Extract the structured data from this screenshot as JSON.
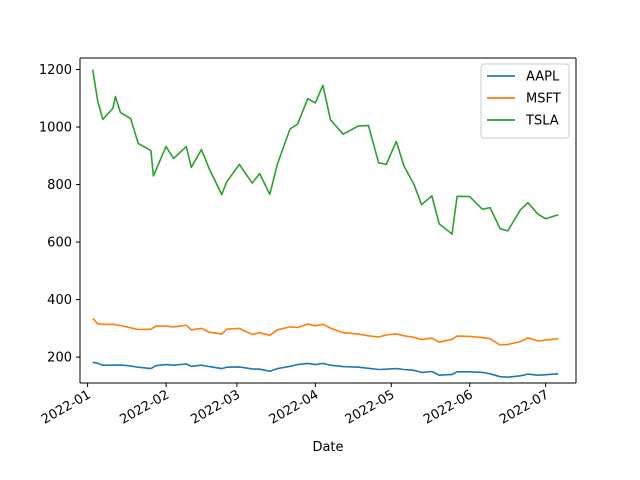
{
  "chart_data": {
    "type": "line",
    "title": "",
    "xlabel": "Date",
    "ylabel": "",
    "x_ticks": [
      "2022-01",
      "2022-02",
      "2022-03",
      "2022-04",
      "2022-05",
      "2022-06",
      "2022-07"
    ],
    "y_ticks": [
      "200",
      "400",
      "600",
      "800",
      "1000",
      "1200"
    ],
    "ylim": [
      110,
      1240
    ],
    "xlim": [
      "2021-12-29",
      "2022-07-13"
    ],
    "grid": false,
    "legend_position": "top-right",
    "series": [
      {
        "name": "AAPL",
        "color": "#1f77b4",
        "points": [
          [
            "2022-01-03",
            182
          ],
          [
            "2022-01-05",
            179
          ],
          [
            "2022-01-07",
            172
          ],
          [
            "2022-01-11",
            172
          ],
          [
            "2022-01-14",
            173
          ],
          [
            "2022-01-18",
            169
          ],
          [
            "2022-01-21",
            165
          ],
          [
            "2022-01-26",
            160
          ],
          [
            "2022-01-28",
            170
          ],
          [
            "2022-02-01",
            174
          ],
          [
            "2022-02-04",
            172
          ],
          [
            "2022-02-09",
            176
          ],
          [
            "2022-02-11",
            168
          ],
          [
            "2022-02-15",
            172
          ],
          [
            "2022-02-18",
            167
          ],
          [
            "2022-02-23",
            160
          ],
          [
            "2022-02-25",
            165
          ],
          [
            "2022-03-02",
            166
          ],
          [
            "2022-03-07",
            159
          ],
          [
            "2022-03-10",
            158
          ],
          [
            "2022-03-14",
            151
          ],
          [
            "2022-03-17",
            160
          ],
          [
            "2022-03-22",
            168
          ],
          [
            "2022-03-25",
            174
          ],
          [
            "2022-03-29",
            178
          ],
          [
            "2022-04-01",
            174
          ],
          [
            "2022-04-04",
            178
          ],
          [
            "2022-04-07",
            172
          ],
          [
            "2022-04-12",
            167
          ],
          [
            "2022-04-18",
            165
          ],
          [
            "2022-04-22",
            161
          ],
          [
            "2022-04-26",
            157
          ],
          [
            "2022-04-29",
            158
          ],
          [
            "2022-05-03",
            160
          ],
          [
            "2022-05-06",
            157
          ],
          [
            "2022-05-10",
            154
          ],
          [
            "2022-05-13",
            147
          ],
          [
            "2022-05-17",
            150
          ],
          [
            "2022-05-20",
            137
          ],
          [
            "2022-05-25",
            140
          ],
          [
            "2022-05-27",
            149
          ],
          [
            "2022-06-01",
            149
          ],
          [
            "2022-06-06",
            147
          ],
          [
            "2022-06-09",
            142
          ],
          [
            "2022-06-13",
            132
          ],
          [
            "2022-06-16",
            130
          ],
          [
            "2022-06-21",
            135
          ],
          [
            "2022-06-24",
            141
          ],
          [
            "2022-06-28",
            137
          ],
          [
            "2022-07-01",
            139
          ],
          [
            "2022-07-06",
            142
          ]
        ]
      },
      {
        "name": "MSFT",
        "color": "#ff7f0e",
        "points": [
          [
            "2022-01-03",
            335
          ],
          [
            "2022-01-05",
            316
          ],
          [
            "2022-01-07",
            314
          ],
          [
            "2022-01-11",
            314
          ],
          [
            "2022-01-14",
            310
          ],
          [
            "2022-01-18",
            302
          ],
          [
            "2022-01-21",
            296
          ],
          [
            "2022-01-26",
            297
          ],
          [
            "2022-01-28",
            308
          ],
          [
            "2022-02-01",
            308
          ],
          [
            "2022-02-04",
            305
          ],
          [
            "2022-02-09",
            311
          ],
          [
            "2022-02-11",
            295
          ],
          [
            "2022-02-15",
            300
          ],
          [
            "2022-02-18",
            287
          ],
          [
            "2022-02-23",
            280
          ],
          [
            "2022-02-25",
            297
          ],
          [
            "2022-03-02",
            300
          ],
          [
            "2022-03-07",
            279
          ],
          [
            "2022-03-10",
            285
          ],
          [
            "2022-03-14",
            276
          ],
          [
            "2022-03-17",
            295
          ],
          [
            "2022-03-22",
            305
          ],
          [
            "2022-03-25",
            303
          ],
          [
            "2022-03-29",
            315
          ],
          [
            "2022-04-01",
            309
          ],
          [
            "2022-04-04",
            314
          ],
          [
            "2022-04-07",
            301
          ],
          [
            "2022-04-12",
            285
          ],
          [
            "2022-04-18",
            280
          ],
          [
            "2022-04-22",
            274
          ],
          [
            "2022-04-26",
            270
          ],
          [
            "2022-04-29",
            277
          ],
          [
            "2022-05-03",
            281
          ],
          [
            "2022-05-06",
            274
          ],
          [
            "2022-05-10",
            269
          ],
          [
            "2022-05-13",
            261
          ],
          [
            "2022-05-17",
            266
          ],
          [
            "2022-05-20",
            252
          ],
          [
            "2022-05-25",
            262
          ],
          [
            "2022-05-27",
            273
          ],
          [
            "2022-06-01",
            272
          ],
          [
            "2022-06-06",
            268
          ],
          [
            "2022-06-09",
            264
          ],
          [
            "2022-06-13",
            242
          ],
          [
            "2022-06-16",
            244
          ],
          [
            "2022-06-21",
            254
          ],
          [
            "2022-06-24",
            267
          ],
          [
            "2022-06-28",
            256
          ],
          [
            "2022-07-01",
            259
          ],
          [
            "2022-07-06",
            264
          ]
        ]
      },
      {
        "name": "TSLA",
        "color": "#2ca02c",
        "points": [
          [
            "2022-01-03",
            1200
          ],
          [
            "2022-01-05",
            1090
          ],
          [
            "2022-01-07",
            1027
          ],
          [
            "2022-01-11",
            1065
          ],
          [
            "2022-01-12",
            1106
          ],
          [
            "2022-01-14",
            1050
          ],
          [
            "2022-01-18",
            1030
          ],
          [
            "2022-01-21",
            943
          ],
          [
            "2022-01-26",
            918
          ],
          [
            "2022-01-27",
            830
          ],
          [
            "2022-02-01",
            932
          ],
          [
            "2022-02-04",
            891
          ],
          [
            "2022-02-09",
            932
          ],
          [
            "2022-02-11",
            860
          ],
          [
            "2022-02-15",
            922
          ],
          [
            "2022-02-18",
            856
          ],
          [
            "2022-02-23",
            765
          ],
          [
            "2022-02-25",
            810
          ],
          [
            "2022-03-02",
            870
          ],
          [
            "2022-03-07",
            805
          ],
          [
            "2022-03-10",
            838
          ],
          [
            "2022-03-14",
            766
          ],
          [
            "2022-03-17",
            871
          ],
          [
            "2022-03-22",
            993
          ],
          [
            "2022-03-25",
            1010
          ],
          [
            "2022-03-29",
            1099
          ],
          [
            "2022-04-01",
            1084
          ],
          [
            "2022-04-04",
            1145
          ],
          [
            "2022-04-07",
            1025
          ],
          [
            "2022-04-12",
            975
          ],
          [
            "2022-04-18",
            1004
          ],
          [
            "2022-04-22",
            1005
          ],
          [
            "2022-04-26",
            876
          ],
          [
            "2022-04-29",
            870
          ],
          [
            "2022-05-03",
            950
          ],
          [
            "2022-05-06",
            865
          ],
          [
            "2022-05-10",
            800
          ],
          [
            "2022-05-13",
            730
          ],
          [
            "2022-05-17",
            761
          ],
          [
            "2022-05-20",
            663
          ],
          [
            "2022-05-25",
            628
          ],
          [
            "2022-05-27",
            759
          ],
          [
            "2022-06-01",
            758
          ],
          [
            "2022-06-06",
            714
          ],
          [
            "2022-06-09",
            720
          ],
          [
            "2022-06-13",
            647
          ],
          [
            "2022-06-16",
            639
          ],
          [
            "2022-06-21",
            711
          ],
          [
            "2022-06-24",
            737
          ],
          [
            "2022-06-28",
            697
          ],
          [
            "2022-07-01",
            681
          ],
          [
            "2022-07-06",
            695
          ]
        ]
      }
    ]
  }
}
